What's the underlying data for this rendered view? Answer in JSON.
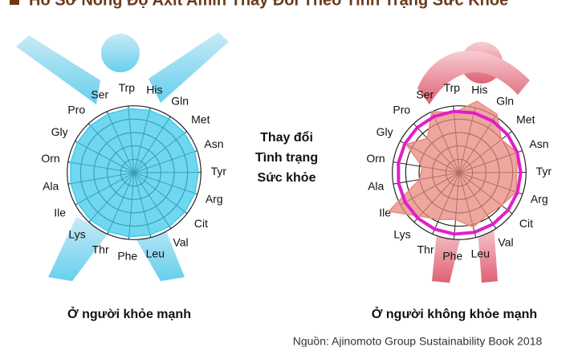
{
  "title": "Hồ Sơ Nồng Độ Axit Amin Thay Đổi Theo Tình Trạng Sức Khỏe",
  "center_text": [
    "Thay đổi",
    "Tình trạng",
    "Sức khỏe"
  ],
  "source": "Nguồn: Ajinomoto Group Sustainability Book 2018",
  "chart_data": [
    {
      "type": "radar",
      "caption": "Ở người khỏe mạnh",
      "categories": [
        "Trp",
        "His",
        "Gln",
        "Met",
        "Asn",
        "Tyr",
        "Arg",
        "Cit",
        "Val",
        "Leu",
        "Phe",
        "Thr",
        "Lys",
        "Ile",
        "Ala",
        "Orn",
        "Gly",
        "Pro",
        "Ser"
      ],
      "rlim": [
        0,
        6
      ],
      "rticks": [
        1,
        2,
        3,
        4,
        5
      ],
      "series": [
        {
          "color": "#3fcbeb",
          "fill": true,
          "values": [
            4.8,
            4.8,
            4.8,
            4.8,
            4.8,
            4.8,
            4.8,
            4.8,
            4.8,
            4.8,
            4.8,
            4.8,
            4.8,
            4.8,
            4.8,
            4.8,
            4.8,
            4.8,
            4.8
          ]
        }
      ]
    },
    {
      "type": "radar",
      "caption": "Ở người không khỏe mạnh",
      "categories": [
        "Trp",
        "His",
        "Gln",
        "Met",
        "Asn",
        "Tyr",
        "Arg",
        "Cit",
        "Val",
        "Leu",
        "Phe",
        "Thr",
        "Lys",
        "Ile",
        "Ala",
        "Orn",
        "Gly",
        "Pro",
        "Ser"
      ],
      "rlim": [
        0,
        6
      ],
      "rticks": [
        1,
        2,
        3,
        4,
        5
      ],
      "series": [
        {
          "color": "#e88a7e",
          "fill": true,
          "values": [
            4.5,
            5.5,
            5.2,
            4.0,
            4.6,
            4.3,
            4.5,
            4.0,
            3.8,
            4.2,
            3.5,
            3.8,
            4.4,
            6.0,
            3.0,
            2.8,
            4.5,
            3.5,
            5.0
          ]
        },
        {
          "color": "#e01fc9",
          "fill": false,
          "values": [
            4.6,
            4.6,
            4.6,
            4.6,
            4.6,
            4.6,
            4.6,
            4.6,
            4.6,
            4.6,
            4.6,
            4.6,
            4.6,
            4.6,
            4.6,
            4.6,
            4.6,
            4.6,
            4.6
          ]
        }
      ]
    }
  ]
}
